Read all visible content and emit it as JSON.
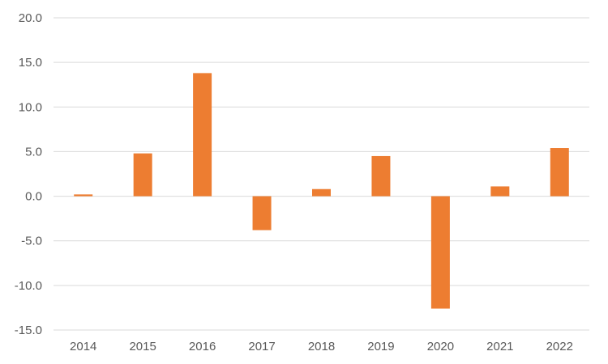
{
  "chart_data": {
    "type": "bar",
    "categories": [
      "2014",
      "2015",
      "2016",
      "2017",
      "2018",
      "2019",
      "2020",
      "2021",
      "2022"
    ],
    "series": [
      {
        "values": [
          0.2,
          4.8,
          13.8,
          -3.8,
          0.8,
          4.5,
          -12.6,
          1.1,
          5.4
        ]
      }
    ],
    "ylim": [
      -15,
      20
    ],
    "yticks": [
      "20.0",
      "15.0",
      "10.0",
      "5.0",
      "0.0",
      "-5.0",
      "-10.0",
      "-15.0"
    ],
    "grid": true,
    "legend": "none",
    "colors": {
      "bar": "#ED7D31",
      "grid": "#D9D9D9",
      "text": "#595959"
    }
  }
}
